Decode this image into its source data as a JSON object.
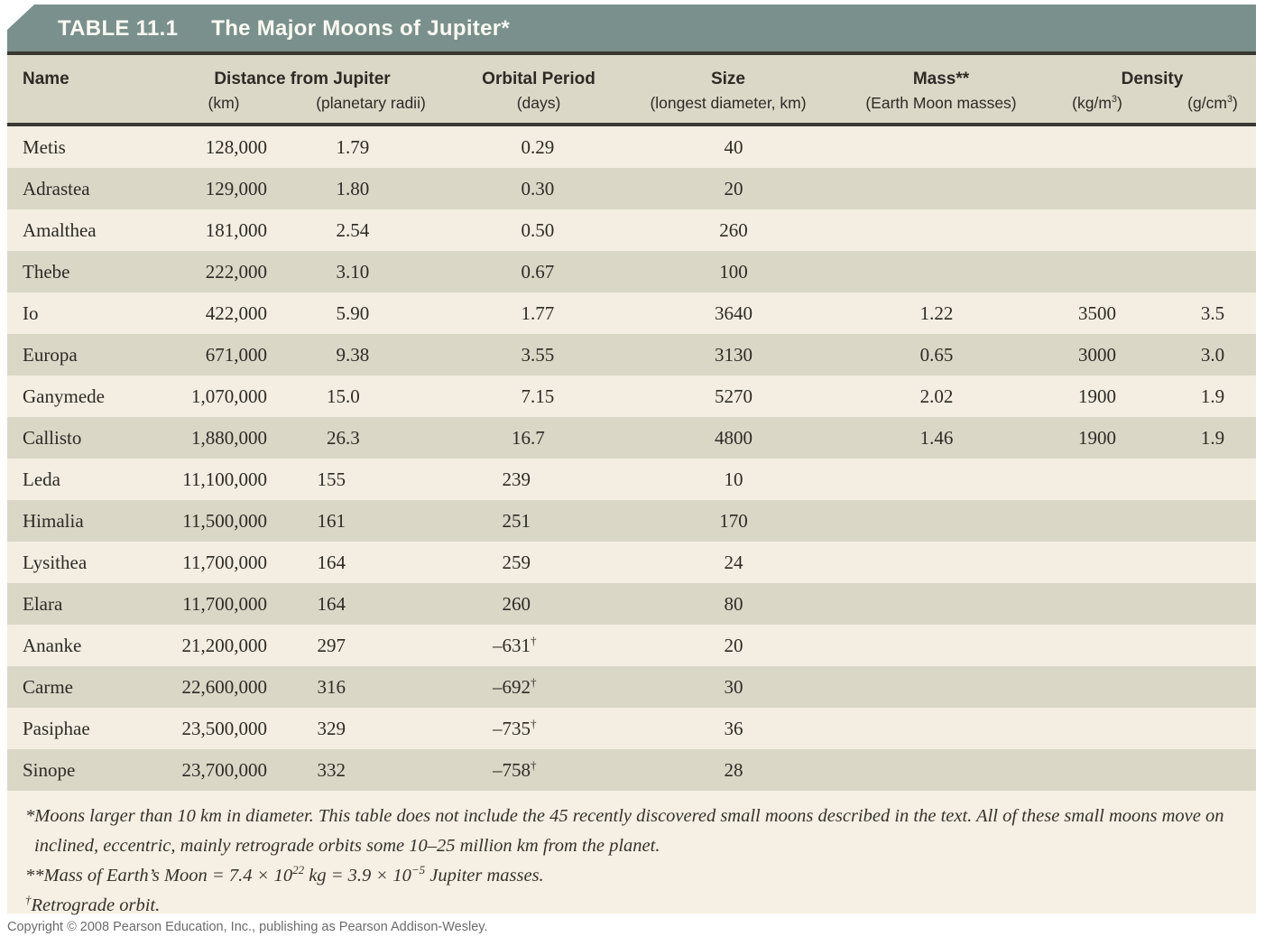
{
  "title_bar": {
    "label": "TABLE 11.1",
    "title": "The Major Moons of Jupiter*"
  },
  "header": {
    "name": "Name",
    "distance_title": "Distance from Jupiter",
    "distance_unit_km": "(km)",
    "distance_unit_radii": "(planetary radii)",
    "orbital_title": "Orbital Period",
    "orbital_unit": "(days)",
    "size_title": "Size",
    "size_unit": "(longest diameter, km)",
    "mass_title": "Mass**",
    "mass_unit": "(Earth Moon masses)",
    "density_title": "Density",
    "density_kg_prefix": "(kg/m",
    "density_kg_sup": "3",
    "density_kg_suffix": ")",
    "density_g_prefix": "(g/cm",
    "density_g_sup": "3",
    "density_g_suffix": ")"
  },
  "rows": [
    {
      "name": "Metis",
      "distance_km": "128,000",
      "planetary_radii": "1.79",
      "orbital_days": "0.29",
      "orbital_sup": "",
      "size_km": "40",
      "mass": "",
      "density_kg": "",
      "density_g": ""
    },
    {
      "name": "Adrastea",
      "distance_km": "129,000",
      "planetary_radii": "1.80",
      "orbital_days": "0.30",
      "orbital_sup": "",
      "size_km": "20",
      "mass": "",
      "density_kg": "",
      "density_g": ""
    },
    {
      "name": "Amalthea",
      "distance_km": "181,000",
      "planetary_radii": "2.54",
      "orbital_days": "0.50",
      "orbital_sup": "",
      "size_km": "260",
      "mass": "",
      "density_kg": "",
      "density_g": ""
    },
    {
      "name": "Thebe",
      "distance_km": "222,000",
      "planetary_radii": "3.10",
      "orbital_days": "0.67",
      "orbital_sup": "",
      "size_km": "100",
      "mass": "",
      "density_kg": "",
      "density_g": ""
    },
    {
      "name": "Io",
      "distance_km": "422,000",
      "planetary_radii": "5.90",
      "orbital_days": "1.77",
      "orbital_sup": "",
      "size_km": "3640",
      "mass": "1.22",
      "density_kg": "3500",
      "density_g": "3.5"
    },
    {
      "name": "Europa",
      "distance_km": "671,000",
      "planetary_radii": "9.38",
      "orbital_days": "3.55",
      "orbital_sup": "",
      "size_km": "3130",
      "mass": "0.65",
      "density_kg": "3000",
      "density_g": "3.0"
    },
    {
      "name": "Ganymede",
      "distance_km": "1,070,000",
      "planetary_radii": "15.0",
      "orbital_days": "7.15",
      "orbital_sup": "",
      "size_km": "5270",
      "mass": "2.02",
      "density_kg": "1900",
      "density_g": "1.9"
    },
    {
      "name": "Callisto",
      "distance_km": "1,880,000",
      "planetary_radii": "26.3",
      "orbital_days": "16.7",
      "orbital_sup": "",
      "size_km": "4800",
      "mass": "1.46",
      "density_kg": "1900",
      "density_g": "1.9"
    },
    {
      "name": "Leda",
      "distance_km": "11,100,000",
      "planetary_radii": "155",
      "orbital_days": "239",
      "orbital_sup": "",
      "size_km": "10",
      "mass": "",
      "density_kg": "",
      "density_g": ""
    },
    {
      "name": "Himalia",
      "distance_km": "11,500,000",
      "planetary_radii": "161",
      "orbital_days": "251",
      "orbital_sup": "",
      "size_km": "170",
      "mass": "",
      "density_kg": "",
      "density_g": ""
    },
    {
      "name": "Lysithea",
      "distance_km": "11,700,000",
      "planetary_radii": "164",
      "orbital_days": "259",
      "orbital_sup": "",
      "size_km": "24",
      "mass": "",
      "density_kg": "",
      "density_g": ""
    },
    {
      "name": "Elara",
      "distance_km": "11,700,000",
      "planetary_radii": "164",
      "orbital_days": "260",
      "orbital_sup": "",
      "size_km": "80",
      "mass": "",
      "density_kg": "",
      "density_g": ""
    },
    {
      "name": "Ananke",
      "distance_km": "21,200,000",
      "planetary_radii": "297",
      "orbital_days": "–631",
      "orbital_sup": "†",
      "size_km": "20",
      "mass": "",
      "density_kg": "",
      "density_g": ""
    },
    {
      "name": "Carme",
      "distance_km": "22,600,000",
      "planetary_radii": "316",
      "orbital_days": "–692",
      "orbital_sup": "†",
      "size_km": "30",
      "mass": "",
      "density_kg": "",
      "density_g": ""
    },
    {
      "name": "Pasiphae",
      "distance_km": "23,500,000",
      "planetary_radii": "329",
      "orbital_days": "–735",
      "orbital_sup": "†",
      "size_km": "36",
      "mass": "",
      "density_kg": "",
      "density_g": ""
    },
    {
      "name": "Sinope",
      "distance_km": "23,700,000",
      "planetary_radii": "332",
      "orbital_days": "–758",
      "orbital_sup": "†",
      "size_km": "28",
      "mass": "",
      "density_kg": "",
      "density_g": ""
    }
  ],
  "footnotes": {
    "f1": "*Moons larger than 10 km in diameter. This table does not include the 45 recently discovered small moons described in the text. All of these small moons move on inclined, eccentric, mainly retrograde orbits some 10–25 million km from the planet.",
    "f2_a": "**Mass of Earth’s Moon = 7.4 × 10",
    "f2_sup1": "22",
    "f2_b": " kg = 3.9 × 10",
    "f2_sup2": "−5",
    "f2_c": " Jupiter masses.",
    "f3_sup": "†",
    "f3_text": "Retrograde orbit."
  },
  "copyright": "Copyright © 2008 Pearson Education, Inc., publishing as Pearson Addison-Wesley."
}
